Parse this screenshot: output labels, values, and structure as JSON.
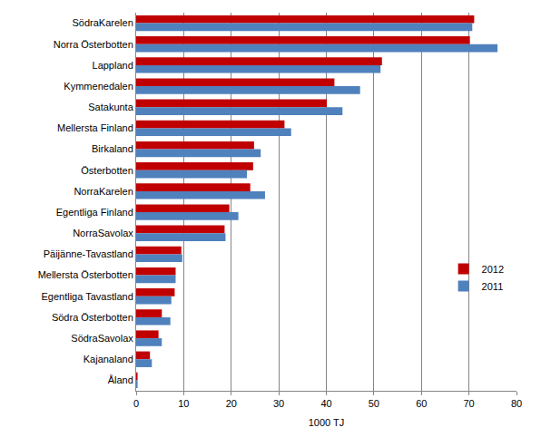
{
  "chart_data": {
    "type": "bar",
    "orientation": "horizontal",
    "xlabel": "1000 TJ",
    "categories": [
      "SödraKarelen",
      "Norra Österbotten",
      "Lappland",
      "Kymmenedalen",
      "Satakunta",
      "Mellersta Finland",
      "Birkaland",
      "Österbotten",
      "NorraKarelen",
      "Egentliga Finland",
      "NorraSavolax",
      "Päijänne-Tavastland",
      "Mellersta Österbotten",
      "Egentliga Tavastland",
      "Södra Österbotten",
      "SödraSavolax",
      "Kajanaland",
      "Åland"
    ],
    "series": [
      {
        "name": "2012",
        "color": "#c00000",
        "values": [
          71.1,
          70.2,
          51.7,
          41.7,
          40.1,
          31.2,
          24.8,
          24.6,
          24.0,
          19.6,
          18.6,
          9.5,
          8.3,
          8.1,
          5.4,
          4.7,
          2.9,
          0.3
        ]
      },
      {
        "name": "2011",
        "color": "#4f81bd",
        "values": [
          70.7,
          76.0,
          51.4,
          47.1,
          43.4,
          32.6,
          26.2,
          23.3,
          27.1,
          21.5,
          18.8,
          9.7,
          8.3,
          7.4,
          7.2,
          5.4,
          3.3,
          0.3
        ]
      }
    ],
    "xlim": [
      0,
      80
    ],
    "xticks": [
      0,
      10,
      20,
      30,
      40,
      50,
      60,
      70,
      80
    ],
    "grid": true,
    "legend": "right"
  }
}
